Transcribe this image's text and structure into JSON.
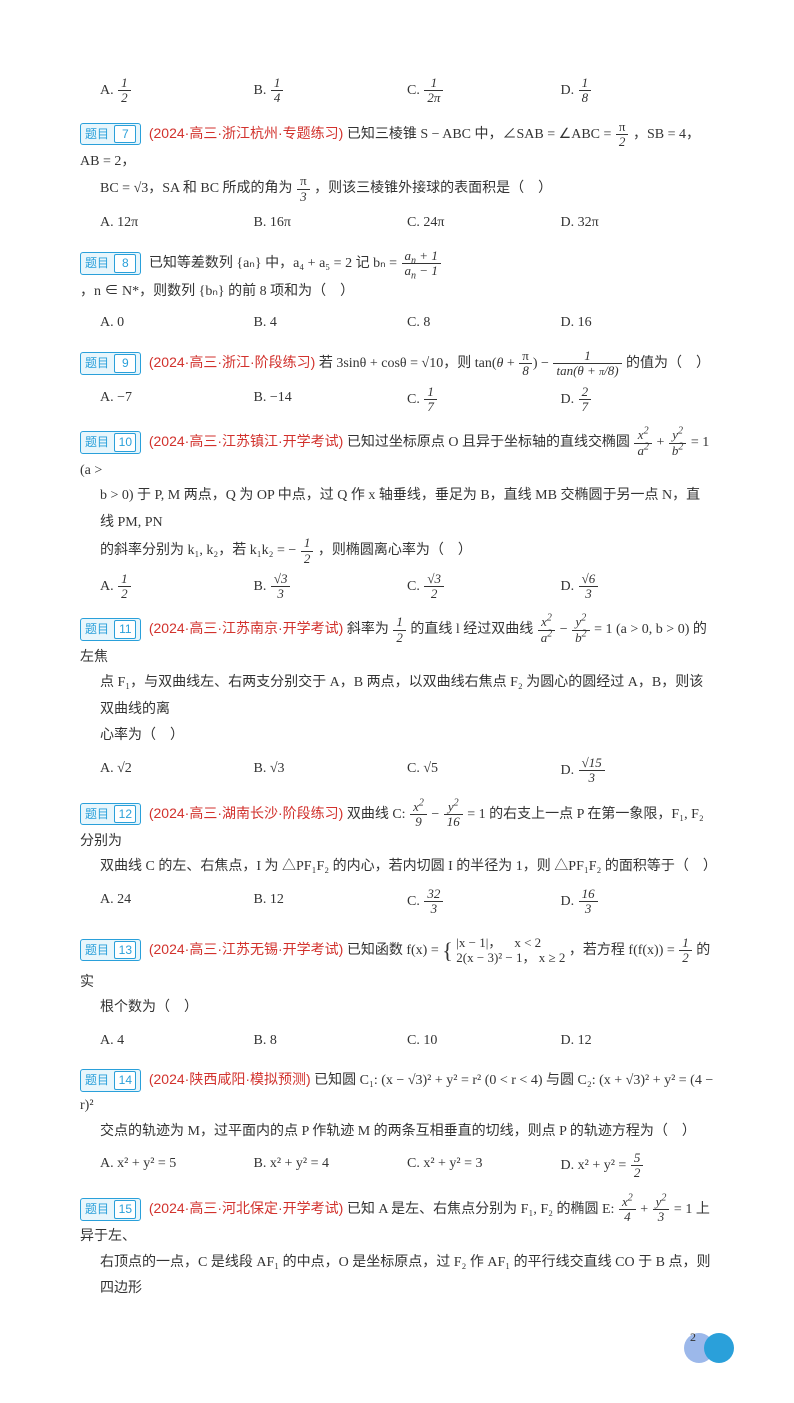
{
  "pill_label": "题目",
  "options_prefix": {
    "A": "A.",
    "B": "B.",
    "C": "C.",
    "D": "D."
  },
  "q_top_options": {
    "A": "1/2",
    "B": "1/4",
    "C": "1/(2π)",
    "D": "1/8"
  },
  "q7": {
    "num": "7",
    "source": "(2024·高三·浙江杭州·专题练习)",
    "stem1": "已知三棱锥 S − ABC 中，∠SAB = ∠ABC = ",
    "stem2": "，SB = 4，AB = 2，",
    "stem3": "BC = √3，SA 和 BC 所成的角为",
    "stem4": "，则该三棱锥外接球的表面积是（　）",
    "options": {
      "A": "12π",
      "B": "16π",
      "C": "24π",
      "D": "32π"
    }
  },
  "q8": {
    "num": "8",
    "stem1": "已知等差数列 {aₙ} 中，a₄ + a₅ = 2  记 bₙ = ",
    "stem2": "，n ∈ N*，则数列 {bₙ} 的前 8 项和为（　）",
    "options": {
      "A": "0",
      "B": "4",
      "C": "8",
      "D": "16"
    }
  },
  "q9": {
    "num": "9",
    "source": "(2024·高三·浙江·阶段练习)",
    "stem1": "若 3sinθ + cosθ = √10，则 tan",
    "stem_end": " 的值为（　）",
    "options": {
      "A": "−7",
      "B": "−14",
      "C": "1/7",
      "D": "2/7"
    }
  },
  "q10": {
    "num": "10",
    "source": "(2024·高三·江苏镇江·开学考试)",
    "stem1": "已知过坐标原点 O 且异于坐标轴的直线交椭圆 ",
    "stem_mid": " = 1 (a >",
    "stem2": "b > 0) 于 P, M 两点，Q 为 OP 中点，过 Q 作 x 轴垂线，垂足为 B，直线 MB 交椭圆于另一点 N，直线 PM, PN",
    "stem3": "的斜率分别为 k₁, k₂，若 k₁k₂ = −",
    "stem4": "，则椭圆离心率为（　）",
    "options": {
      "A": "1/2",
      "B": "√3/3",
      "C": "√3/2",
      "D": "√6/3"
    }
  },
  "q11": {
    "num": "11",
    "source": "(2024·高三·江苏南京·开学考试)",
    "stem1": "斜率为 ",
    "stem1b": " 的直线 l 经过双曲线 ",
    "stem_mid": " = 1 (a > 0, b > 0) 的左焦",
    "stem2": "点 F₁，与双曲线左、右两支分别交于 A，B 两点，以双曲线右焦点 F₂ 为圆心的圆经过 A，B，则该双曲线的离",
    "stem3": "心率为（　）",
    "options": {
      "A": "√2",
      "B": "√3",
      "C": "√5",
      "D": "√15/3"
    }
  },
  "q12": {
    "num": "12",
    "source": "(2024·高三·湖南长沙·阶段练习)",
    "stem1": "双曲线 C: ",
    "stem_mid": " = 1 的右支上一点 P 在第一象限，F₁, F₂ 分别为",
    "stem2": "双曲线 C 的左、右焦点，I 为 △PF₁F₂ 的内心，若内切圆 I 的半径为 1，则 △PF₁F₂ 的面积等于（　）",
    "options": {
      "A": "24",
      "B": "12",
      "C": "32/3",
      "D": "16/3"
    }
  },
  "q13": {
    "num": "13",
    "source": "(2024·高三·江苏无锡·开学考试)",
    "stem1": "已知函数 f(x) = ",
    "piece1": "|x − 1|，",
    "cond1": "x < 2",
    "piece2": "2(x − 3)² − 1，",
    "cond2": "x ≥ 2",
    "stem2": "，若方程 f(f(x)) = ",
    "stem3": " 的实",
    "stem4": "根个数为（　）",
    "options": {
      "A": "4",
      "B": "8",
      "C": "10",
      "D": "12"
    }
  },
  "q14": {
    "num": "14",
    "source": "(2024·陕西咸阳·模拟预测)",
    "stem1": "已知圆 C₁: (x − √3)² + y² = r² (0 < r < 4) 与圆 C₂: (x + √3)² + y² = (4 − r)²",
    "stem2": "交点的轨迹为 M，过平面内的点 P 作轨迹 M 的两条互相垂直的切线，则点 P 的轨迹方程为（　）",
    "options": {
      "A": "x² + y² = 5",
      "B": "x² + y² = 4",
      "C": "x² + y² = 3",
      "D_pre": "x² + y² = ",
      "D_frac_n": "5",
      "D_frac_d": "2"
    }
  },
  "q15": {
    "num": "15",
    "source": "(2024·高三·河北保定·开学考试)",
    "stem1": "已知 A 是左、右焦点分别为 F₁, F₂ 的椭圆 E: ",
    "stem_mid": " = 1 上异于左、",
    "stem2": "右顶点的一点，C 是线段 AF₁ 的中点，O 是坐标原点，过 F₂ 作 AF₁ 的平行线交直线 CO 于 B 点，则四边形"
  },
  "page_number": "2"
}
